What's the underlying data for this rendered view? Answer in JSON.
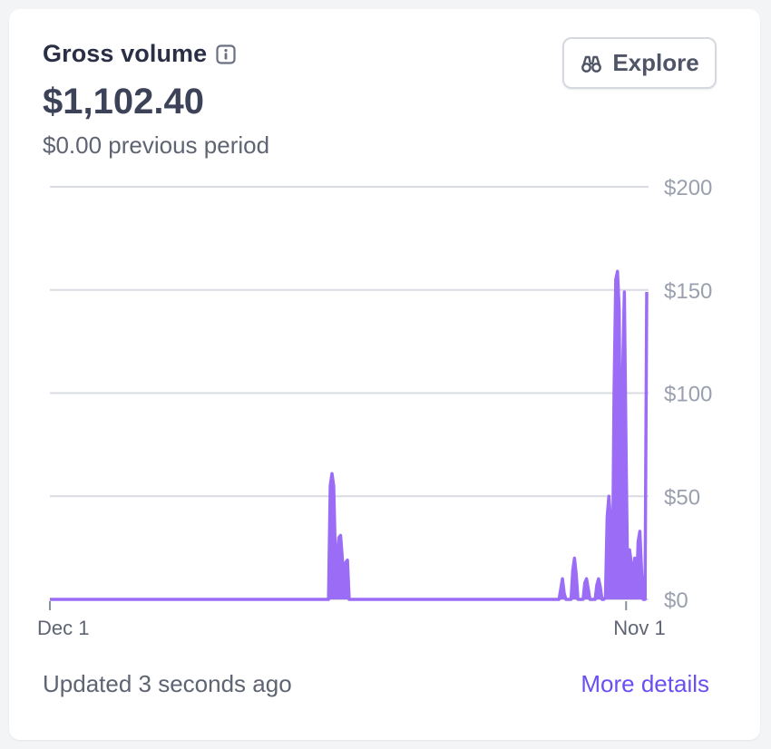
{
  "card": {
    "title": "Gross volume",
    "amount": "$1,102.40",
    "previous_period": "$0.00 previous period",
    "explore_label": "Explore",
    "updated_text": "Updated 3 seconds ago",
    "more_details_label": "More details"
  },
  "colors": {
    "series": "#9b6cf6",
    "grid": "#d9dce3",
    "axis_text": "#9aa0ae",
    "link": "#6b4ff1"
  },
  "icons": {
    "info": "info-icon",
    "explore": "binoculars-icon"
  },
  "chart_data": {
    "type": "line",
    "title": "",
    "xlabel": "",
    "ylabel": "",
    "ylim": [
      0,
      200
    ],
    "yticks": [
      "$0",
      "$50",
      "$100",
      "$150",
      "$200"
    ],
    "ytick_values": [
      0,
      50,
      100,
      150,
      200
    ],
    "xticks": [
      {
        "label": "Dec 1",
        "x": 0
      },
      {
        "label": "Nov 1",
        "x": 335
      }
    ],
    "grid": true,
    "series": [
      {
        "values": [
          [
            0,
            0
          ],
          [
            154,
            0
          ],
          [
            162,
            0
          ],
          [
            163,
            55
          ],
          [
            164,
            61
          ],
          [
            165,
            55
          ],
          [
            166,
            20
          ],
          [
            167,
            20
          ],
          [
            168,
            30
          ],
          [
            169,
            31
          ],
          [
            170,
            20
          ],
          [
            171,
            2
          ],
          [
            172,
            18
          ],
          [
            173,
            19
          ],
          [
            174,
            0
          ],
          [
            296,
            0
          ],
          [
            297,
            5
          ],
          [
            298,
            10
          ],
          [
            299,
            3
          ],
          [
            300,
            0
          ],
          [
            303,
            0
          ],
          [
            304,
            14
          ],
          [
            305,
            20
          ],
          [
            306,
            12
          ],
          [
            307,
            0
          ],
          [
            310,
            0
          ],
          [
            311,
            8
          ],
          [
            312,
            10
          ],
          [
            313,
            5
          ],
          [
            314,
            0
          ],
          [
            317,
            0
          ],
          [
            318,
            7
          ],
          [
            319,
            10
          ],
          [
            320,
            6
          ],
          [
            321,
            0
          ],
          [
            322,
            0
          ],
          [
            323,
            1
          ],
          [
            324,
            40
          ],
          [
            325,
            50
          ],
          [
            326,
            38
          ],
          [
            327,
            2
          ],
          [
            328,
            100
          ],
          [
            329,
            155
          ],
          [
            330,
            159
          ],
          [
            331,
            140
          ],
          [
            332,
            10
          ],
          [
            333,
            110
          ],
          [
            334,
            149
          ],
          [
            335,
            70
          ],
          [
            336,
            2
          ],
          [
            337,
            24
          ],
          [
            338,
            18
          ],
          [
            339,
            3
          ],
          [
            340,
            20
          ],
          [
            341,
            3
          ],
          [
            342,
            28
          ],
          [
            343,
            33
          ],
          [
            344,
            14
          ],
          [
            345,
            0
          ],
          [
            346,
            0
          ],
          [
            347,
            149
          ]
        ]
      }
    ]
  }
}
